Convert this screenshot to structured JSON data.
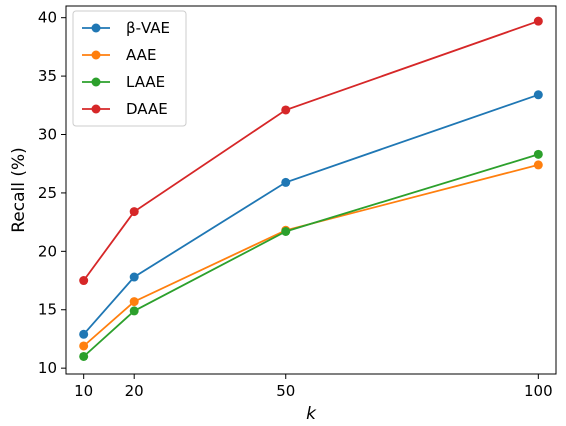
{
  "chart_data": {
    "type": "line",
    "x": [
      10,
      20,
      50,
      100
    ],
    "xticks": [
      "10",
      "20",
      "50",
      "100"
    ],
    "yticks": [
      "10",
      "15",
      "20",
      "25",
      "30",
      "35",
      "40"
    ],
    "xlabel": "k",
    "ylabel": "Recall (%)",
    "xlim": [
      6.5,
      103.5
    ],
    "ylim": [
      9.5,
      41
    ],
    "grid": false,
    "legend_position": "top-left",
    "series": [
      {
        "name": "β-VAE",
        "color": "#1f77b4",
        "values": [
          12.9,
          17.8,
          25.9,
          33.4
        ]
      },
      {
        "name": "AAE",
        "color": "#ff7f0e",
        "values": [
          11.9,
          15.7,
          21.8,
          27.4
        ]
      },
      {
        "name": "LAAE",
        "color": "#2ca02c",
        "values": [
          11.0,
          14.9,
          21.7,
          28.3
        ]
      },
      {
        "name": "DAAE",
        "color": "#d62728",
        "values": [
          17.5,
          23.4,
          32.1,
          39.7
        ]
      }
    ]
  }
}
